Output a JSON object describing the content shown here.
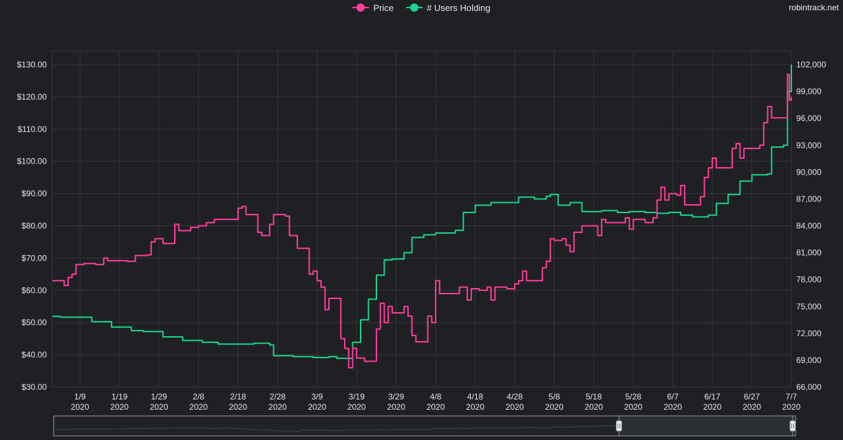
{
  "watermark": "robintrack.net",
  "colors": {
    "background": "#1e2024",
    "grid": "#34373c",
    "price": "#ff3d9a",
    "users": "#19d48a",
    "navigator_fill": "#2b2e33",
    "navigator_border": "#9aa0a8"
  },
  "chart_data": {
    "type": "line",
    "x_axis": {
      "ticks": [
        {
          "date": "2020-01-09",
          "line1": "1/9",
          "line2": "2020"
        },
        {
          "date": "2020-01-19",
          "line1": "1/19",
          "line2": "2020"
        },
        {
          "date": "2020-01-29",
          "line1": "1/29",
          "line2": "2020"
        },
        {
          "date": "2020-02-08",
          "line1": "2/8",
          "line2": "2020"
        },
        {
          "date": "2020-02-18",
          "line1": "2/18",
          "line2": "2020"
        },
        {
          "date": "2020-02-28",
          "line1": "2/28",
          "line2": "2020"
        },
        {
          "date": "2020-03-09",
          "line1": "3/9",
          "line2": "2020"
        },
        {
          "date": "2020-03-19",
          "line1": "3/19",
          "line2": "2020"
        },
        {
          "date": "2020-03-29",
          "line1": "3/29",
          "line2": "2020"
        },
        {
          "date": "2020-04-08",
          "line1": "4/8",
          "line2": "2020"
        },
        {
          "date": "2020-04-18",
          "line1": "4/18",
          "line2": "2020"
        },
        {
          "date": "2020-04-28",
          "line1": "4/28",
          "line2": "2020"
        },
        {
          "date": "2020-05-08",
          "line1": "5/8",
          "line2": "2020"
        },
        {
          "date": "2020-05-18",
          "line1": "5/18",
          "line2": "2020"
        },
        {
          "date": "2020-05-28",
          "line1": "5/28",
          "line2": "2020"
        },
        {
          "date": "2020-06-07",
          "line1": "6/7",
          "line2": "2020"
        },
        {
          "date": "2020-06-17",
          "line1": "6/17",
          "line2": "2020"
        },
        {
          "date": "2020-06-27",
          "line1": "6/27",
          "line2": "2020"
        },
        {
          "date": "2020-07-07",
          "line1": "7/7",
          "line2": "2020"
        }
      ],
      "range": [
        "2020-01-02",
        "2020-07-07"
      ]
    },
    "y_left": {
      "ticks": [
        "$30.00",
        "$40.00",
        "$50.00",
        "$60.00",
        "$70.00",
        "$80.00",
        "$90.00",
        "$100.00",
        "$110.00",
        "$120.00",
        "$130.00"
      ],
      "range": [
        30,
        130
      ]
    },
    "y_right": {
      "ticks": [
        "66,000",
        "69,000",
        "72,000",
        "75,000",
        "78,000",
        "81,000",
        "84,000",
        "87,000",
        "90,000",
        "93,000",
        "96,000",
        "99,000",
        "102,000"
      ],
      "range": [
        66000,
        102000
      ]
    },
    "grid": true,
    "legend_position": "top-center",
    "series": [
      {
        "name": "Price",
        "color": "#ff3d9a",
        "axis": "left",
        "points": [
          [
            "2020-01-02",
            63
          ],
          [
            "2020-01-05",
            61.5
          ],
          [
            "2020-01-06",
            64
          ],
          [
            "2020-01-07",
            65
          ],
          [
            "2020-01-08",
            68
          ],
          [
            "2020-01-10",
            68.3
          ],
          [
            "2020-01-13",
            68
          ],
          [
            "2020-01-15",
            70
          ],
          [
            "2020-01-16",
            69.2
          ],
          [
            "2020-01-21",
            69
          ],
          [
            "2020-01-23",
            70.8
          ],
          [
            "2020-01-26",
            71
          ],
          [
            "2020-01-27",
            75
          ],
          [
            "2020-01-28",
            76
          ],
          [
            "2020-01-30",
            74.5
          ],
          [
            "2020-02-02",
            80.5
          ],
          [
            "2020-02-03",
            78.5
          ],
          [
            "2020-02-06",
            79.5
          ],
          [
            "2020-02-08",
            80
          ],
          [
            "2020-02-10",
            81
          ],
          [
            "2020-02-12",
            82
          ],
          [
            "2020-02-16",
            82
          ],
          [
            "2020-02-18",
            85.5
          ],
          [
            "2020-02-19",
            86
          ],
          [
            "2020-02-20",
            83.5
          ],
          [
            "2020-02-23",
            78
          ],
          [
            "2020-02-24",
            77
          ],
          [
            "2020-02-26",
            80.5
          ],
          [
            "2020-02-27",
            83.5
          ],
          [
            "2020-03-01",
            83
          ],
          [
            "2020-03-02",
            77
          ],
          [
            "2020-03-04",
            73
          ],
          [
            "2020-03-06",
            73
          ],
          [
            "2020-03-07",
            65
          ],
          [
            "2020-03-08",
            66
          ],
          [
            "2020-03-09",
            63
          ],
          [
            "2020-03-10",
            61
          ],
          [
            "2020-03-11",
            54
          ],
          [
            "2020-03-12",
            57.5
          ],
          [
            "2020-03-14",
            57.5
          ],
          [
            "2020-03-15",
            45
          ],
          [
            "2020-03-16",
            42
          ],
          [
            "2020-03-17",
            36
          ],
          [
            "2020-03-18",
            42
          ],
          [
            "2020-03-19",
            39
          ],
          [
            "2020-03-21",
            38
          ],
          [
            "2020-03-23",
            38
          ],
          [
            "2020-03-24",
            48
          ],
          [
            "2020-03-25",
            56
          ],
          [
            "2020-03-26",
            50
          ],
          [
            "2020-03-27",
            55
          ],
          [
            "2020-03-28",
            53
          ],
          [
            "2020-03-30",
            53
          ],
          [
            "2020-03-31",
            55
          ],
          [
            "2020-04-01",
            52
          ],
          [
            "2020-04-02",
            46
          ],
          [
            "2020-04-03",
            44
          ],
          [
            "2020-04-05",
            44
          ],
          [
            "2020-04-06",
            52
          ],
          [
            "2020-04-07",
            50
          ],
          [
            "2020-04-08",
            63
          ],
          [
            "2020-04-09",
            59
          ],
          [
            "2020-04-13",
            59
          ],
          [
            "2020-04-14",
            61
          ],
          [
            "2020-04-16",
            57
          ],
          [
            "2020-04-17",
            60.5
          ],
          [
            "2020-04-19",
            60
          ],
          [
            "2020-04-21",
            61
          ],
          [
            "2020-04-22",
            57
          ],
          [
            "2020-04-23",
            61
          ],
          [
            "2020-04-26",
            60.5
          ],
          [
            "2020-04-28",
            62
          ],
          [
            "2020-04-29",
            63
          ],
          [
            "2020-04-30",
            66
          ],
          [
            "2020-05-01",
            63
          ],
          [
            "2020-05-04",
            63
          ],
          [
            "2020-05-05",
            67
          ],
          [
            "2020-05-06",
            69
          ],
          [
            "2020-05-07",
            76
          ],
          [
            "2020-05-08",
            75.5
          ],
          [
            "2020-05-10",
            76
          ],
          [
            "2020-05-11",
            74
          ],
          [
            "2020-05-12",
            72
          ],
          [
            "2020-05-13",
            78
          ],
          [
            "2020-05-15",
            80
          ],
          [
            "2020-05-18",
            80
          ],
          [
            "2020-05-19",
            77
          ],
          [
            "2020-05-20",
            82
          ],
          [
            "2020-05-21",
            81
          ],
          [
            "2020-05-25",
            81
          ],
          [
            "2020-05-26",
            82.5
          ],
          [
            "2020-05-27",
            79
          ],
          [
            "2020-05-28",
            82
          ],
          [
            "2020-05-30",
            82
          ],
          [
            "2020-05-31",
            81
          ],
          [
            "2020-06-02",
            82.5
          ],
          [
            "2020-06-03",
            88
          ],
          [
            "2020-06-04",
            92
          ],
          [
            "2020-06-05",
            88
          ],
          [
            "2020-06-06",
            90
          ],
          [
            "2020-06-08",
            89.5
          ],
          [
            "2020-06-09",
            92.5
          ],
          [
            "2020-06-10",
            86.5
          ],
          [
            "2020-06-13",
            86.5
          ],
          [
            "2020-06-14",
            89
          ],
          [
            "2020-06-15",
            95
          ],
          [
            "2020-06-16",
            98
          ],
          [
            "2020-06-17",
            101
          ],
          [
            "2020-06-18",
            98
          ],
          [
            "2020-06-21",
            98
          ],
          [
            "2020-06-22",
            104
          ],
          [
            "2020-06-23",
            105.5
          ],
          [
            "2020-06-24",
            101
          ],
          [
            "2020-06-25",
            104
          ],
          [
            "2020-06-28",
            104
          ],
          [
            "2020-06-29",
            105
          ],
          [
            "2020-06-30",
            112
          ],
          [
            "2020-07-01",
            117
          ],
          [
            "2020-07-02",
            113.5
          ],
          [
            "2020-07-05",
            113.5
          ],
          [
            "2020-07-06",
            127
          ],
          [
            "2020-07-06.5",
            119
          ],
          [
            "2020-07-07",
            120
          ]
        ]
      },
      {
        "name": "# Users Holding",
        "color": "#19d48a",
        "axis": "right",
        "points": [
          [
            "2020-01-02",
            73900
          ],
          [
            "2020-01-04",
            73800
          ],
          [
            "2020-01-07",
            73800
          ],
          [
            "2020-01-12",
            73300
          ],
          [
            "2020-01-17",
            72700
          ],
          [
            "2020-01-19",
            72700
          ],
          [
            "2020-01-22",
            72300
          ],
          [
            "2020-01-25",
            72200
          ],
          [
            "2020-01-30",
            71600
          ],
          [
            "2020-02-04",
            71200
          ],
          [
            "2020-02-09",
            71000
          ],
          [
            "2020-02-13",
            70800
          ],
          [
            "2020-02-17",
            70800
          ],
          [
            "2020-02-22",
            70900
          ],
          [
            "2020-02-26",
            70700
          ],
          [
            "2020-02-27",
            69500
          ],
          [
            "2020-03-03",
            69400
          ],
          [
            "2020-03-08",
            69300
          ],
          [
            "2020-03-12",
            69400
          ],
          [
            "2020-03-14",
            69200
          ],
          [
            "2020-03-16",
            69200
          ],
          [
            "2020-03-18",
            71000
          ],
          [
            "2020-03-20",
            73500
          ],
          [
            "2020-03-22",
            75800
          ],
          [
            "2020-03-24",
            78500
          ],
          [
            "2020-03-26",
            80200
          ],
          [
            "2020-03-28",
            80300
          ],
          [
            "2020-03-31",
            81000
          ],
          [
            "2020-04-02",
            82700
          ],
          [
            "2020-04-05",
            83000
          ],
          [
            "2020-04-08",
            83200
          ],
          [
            "2020-04-13",
            83500
          ],
          [
            "2020-04-15",
            85500
          ],
          [
            "2020-04-18",
            86300
          ],
          [
            "2020-04-22",
            86600
          ],
          [
            "2020-04-26",
            86600
          ],
          [
            "2020-04-29",
            87200
          ],
          [
            "2020-05-03",
            87000
          ],
          [
            "2020-05-06",
            87300
          ],
          [
            "2020-05-07",
            87500
          ],
          [
            "2020-05-09",
            86300
          ],
          [
            "2020-05-12",
            86600
          ],
          [
            "2020-05-15",
            85600
          ],
          [
            "2020-05-20",
            85700
          ],
          [
            "2020-05-24",
            85500
          ],
          [
            "2020-05-27",
            85600
          ],
          [
            "2020-05-31",
            85500
          ],
          [
            "2020-06-03",
            85400
          ],
          [
            "2020-06-06",
            85500
          ],
          [
            "2020-06-09",
            85200
          ],
          [
            "2020-06-12",
            85000
          ],
          [
            "2020-06-16",
            85200
          ],
          [
            "2020-06-18",
            86500
          ],
          [
            "2020-06-21",
            87500
          ],
          [
            "2020-06-24",
            89000
          ],
          [
            "2020-06-27",
            89700
          ],
          [
            "2020-07-01",
            89800
          ],
          [
            "2020-07-02",
            92800
          ],
          [
            "2020-07-05",
            93000
          ],
          [
            "2020-07-06",
            99000
          ],
          [
            "2020-07-07",
            102000
          ]
        ]
      }
    ]
  }
}
